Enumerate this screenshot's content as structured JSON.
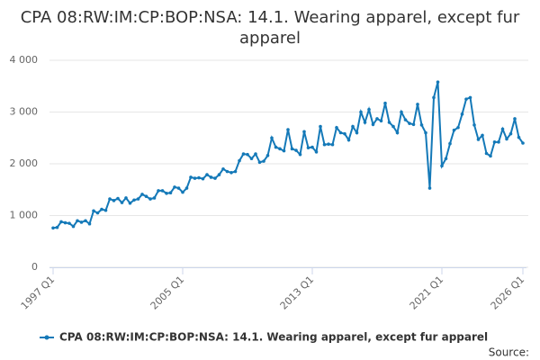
{
  "chart_data": {
    "type": "line",
    "title": "CPA 08:RW:IM:CP:BOP:NSA: 14.1. Wearing apparel, except fur apparel",
    "categories": [
      "1997 Q1",
      null,
      null,
      null,
      null,
      null,
      null,
      null,
      null,
      null,
      null,
      null,
      null,
      null,
      null,
      null,
      null,
      null,
      null,
      null,
      null,
      null,
      null,
      null,
      null,
      null,
      null,
      null,
      null,
      null,
      null,
      null,
      "2005 Q1",
      null,
      null,
      null,
      null,
      null,
      null,
      null,
      null,
      null,
      null,
      null,
      null,
      null,
      null,
      null,
      null,
      null,
      null,
      null,
      null,
      null,
      null,
      null,
      null,
      null,
      null,
      null,
      null,
      null,
      null,
      null,
      "2013 Q1",
      null,
      null,
      null,
      null,
      null,
      null,
      null,
      null,
      null,
      null,
      null,
      null,
      null,
      null,
      null,
      null,
      null,
      null,
      null,
      null,
      null,
      null,
      null,
      null,
      null,
      null,
      null,
      null,
      null,
      null,
      null,
      "2021 Q1",
      null,
      null,
      null,
      null,
      null,
      null,
      null,
      null,
      null,
      null,
      null,
      null,
      null,
      null,
      null,
      null,
      null,
      null,
      null,
      "2026 Q1"
    ],
    "series": [
      {
        "name": "CPA 08:RW:IM:CP:BOP:NSA: 14.1. Wearing apparel, except fur apparel",
        "color": "#1479b8",
        "values": [
          760,
          770,
          880,
          860,
          850,
          790,
          900,
          870,
          900,
          840,
          1090,
          1050,
          1120,
          1100,
          1320,
          1290,
          1330,
          1250,
          1340,
          1240,
          1300,
          1320,
          1410,
          1370,
          1320,
          1340,
          1480,
          1480,
          1430,
          1440,
          1550,
          1530,
          1450,
          1530,
          1740,
          1720,
          1730,
          1710,
          1790,
          1740,
          1720,
          1790,
          1900,
          1850,
          1830,
          1850,
          2060,
          2190,
          2180,
          2100,
          2190,
          2030,
          2050,
          2160,
          2500,
          2320,
          2290,
          2250,
          2660,
          2290,
          2260,
          2180,
          2620,
          2310,
          2320,
          2230,
          2720,
          2370,
          2380,
          2370,
          2700,
          2600,
          2580,
          2460,
          2720,
          2600,
          3000,
          2800,
          3050,
          2760,
          2870,
          2830,
          3170,
          2800,
          2720,
          2600,
          3000,
          2850,
          2780,
          2760,
          3150,
          2750,
          2600,
          1530,
          3280,
          3580,
          1960,
          2100,
          2390,
          2650,
          2700,
          2960,
          3250,
          3280,
          2750,
          2470,
          2550,
          2200,
          2150,
          2420,
          2420,
          2670,
          2480,
          2580,
          2870,
          2510,
          2400
        ]
      }
    ],
    "ylim": [
      0,
      4000
    ],
    "yticks": [
      0,
      {
        "value": 1000,
        "label": "1 000"
      },
      {
        "value": 2000,
        "label": "2 000"
      },
      {
        "value": 3000,
        "label": "3 000"
      },
      {
        "value": 4000,
        "label": "4 000"
      }
    ],
    "grid": true,
    "source": "Source:"
  }
}
